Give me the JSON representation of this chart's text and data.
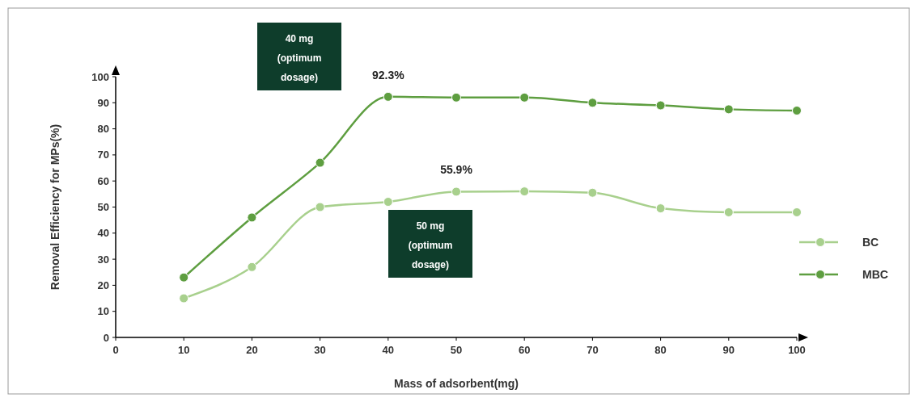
{
  "chart_data": {
    "type": "line",
    "xlabel": "Mass of adsorbent(mg)",
    "ylabel": "Removal Efficiency for MPs(%)",
    "x": [
      10,
      20,
      30,
      40,
      50,
      60,
      70,
      80,
      90,
      100
    ],
    "series": [
      {
        "name": "BC",
        "color": "#a8d08d",
        "values": [
          15,
          27,
          50,
          52,
          55.9,
          56,
          55.5,
          49.5,
          48,
          48
        ]
      },
      {
        "name": "MBC",
        "color": "#5e9e40",
        "values": [
          23,
          46,
          67,
          92.3,
          92,
          92,
          90,
          89,
          87.5,
          87
        ]
      }
    ],
    "xlim": [
      0,
      100
    ],
    "xticks": [
      0,
      10,
      20,
      30,
      40,
      50,
      60,
      70,
      80,
      90,
      100
    ],
    "ylim": [
      0,
      100
    ],
    "yticks": [
      0,
      10,
      20,
      30,
      40,
      50,
      60,
      70,
      80,
      90,
      100
    ],
    "grid": false,
    "legend": "right",
    "marker": "circle",
    "line_style": "solid",
    "annotations": [
      {
        "text": "92.3%",
        "x": 40,
        "y": 92.3
      },
      {
        "text": "55.9%",
        "x": 50,
        "y": 55.9
      },
      "40 mg (optimum dosage)",
      "50 mg (optimum dosage)"
    ]
  }
}
